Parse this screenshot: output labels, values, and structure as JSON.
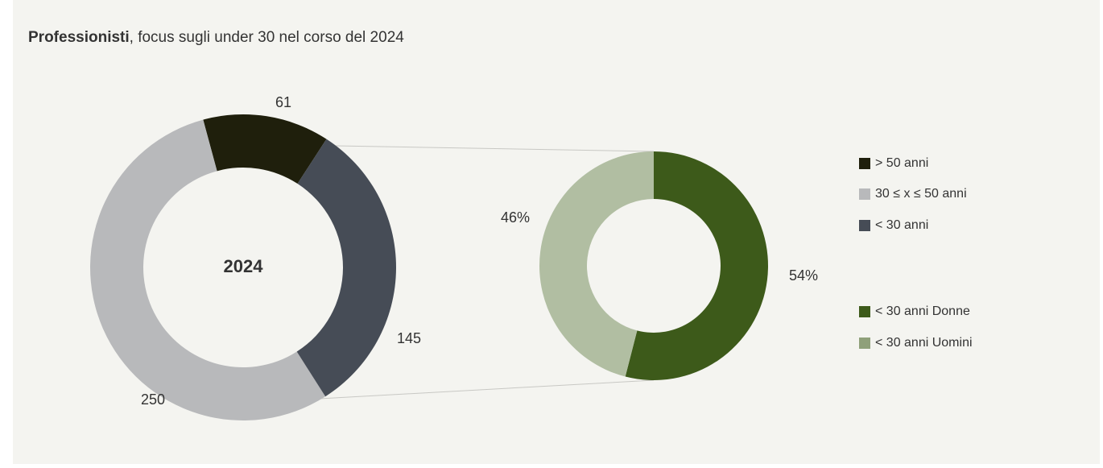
{
  "title": {
    "bold": "Professionisti",
    "rest": ", focus sugli under 30 nel corso del 2024"
  },
  "chart_data": [
    {
      "type": "donut",
      "center_label": "2024",
      "categories": [
        "> 50 anni",
        "30 ≤ x ≤ 50 anni",
        "< 30 anni"
      ],
      "values": [
        61,
        250,
        145
      ],
      "colors": [
        "#1f1f0c",
        "#b8b9bb",
        "#464c56"
      ]
    },
    {
      "type": "donut",
      "categories": [
        "< 30 anni Donne",
        "< 30 anni Uomini"
      ],
      "values": [
        54,
        46
      ],
      "value_labels": [
        "54%",
        "46%"
      ],
      "colors": [
        "#3d5a1a",
        "#b1bea2"
      ],
      "legend_colors": [
        "#3d5a1a",
        "#8fa07a"
      ]
    }
  ]
}
